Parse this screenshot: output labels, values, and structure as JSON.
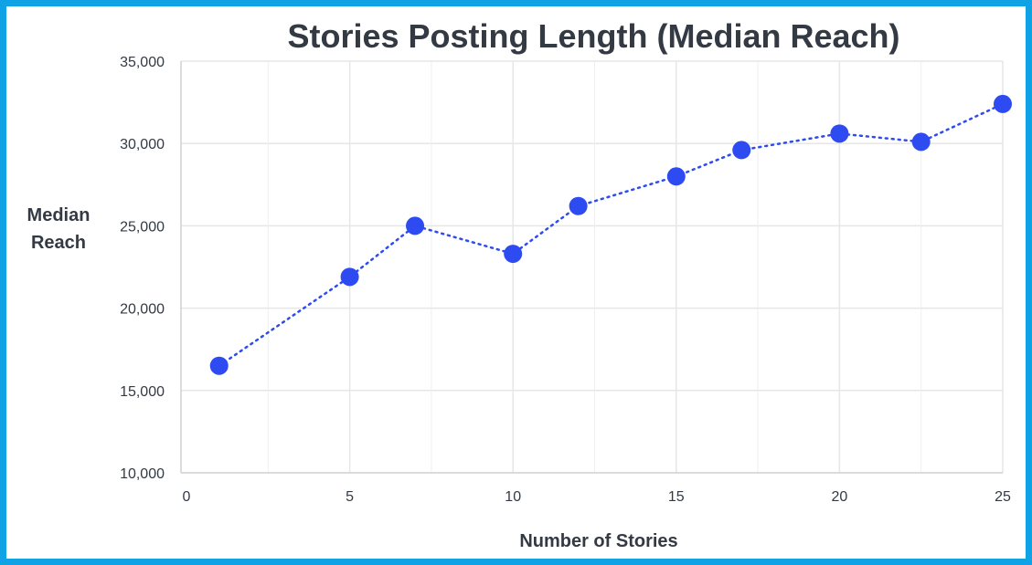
{
  "chart_data": {
    "type": "line",
    "title": "Stories Posting Length (Median Reach)",
    "xlabel": "Number of Stories",
    "ylabel_lines": [
      "Median",
      "Reach"
    ],
    "x_ticks": [
      {
        "value": 0,
        "label": "0"
      },
      {
        "value": 5,
        "label": "5"
      },
      {
        "value": 10,
        "label": "10"
      },
      {
        "value": 15,
        "label": "15"
      },
      {
        "value": 20,
        "label": "20"
      },
      {
        "value": 25,
        "label": "25"
      }
    ],
    "y_ticks": [
      {
        "value": 10000,
        "label": "10,000"
      },
      {
        "value": 15000,
        "label": "15,000"
      },
      {
        "value": 20000,
        "label": "20,000"
      },
      {
        "value": 25000,
        "label": "25,000"
      },
      {
        "value": 30000,
        "label": "30,000"
      },
      {
        "value": 35000,
        "label": "35,000"
      }
    ],
    "xlim": [
      0,
      25
    ],
    "ylim": [
      10000,
      35000
    ],
    "grid": true,
    "legend": "none",
    "line_style": "dotted",
    "marker": "circle",
    "color": "#2d4bf0",
    "series": [
      {
        "x": [
          1,
          5,
          7,
          10,
          12,
          15,
          17,
          20,
          22.5,
          25
        ],
        "y": [
          16500,
          21900,
          25000,
          23300,
          26200,
          28000,
          29600,
          30600,
          30100,
          32400
        ]
      }
    ]
  }
}
